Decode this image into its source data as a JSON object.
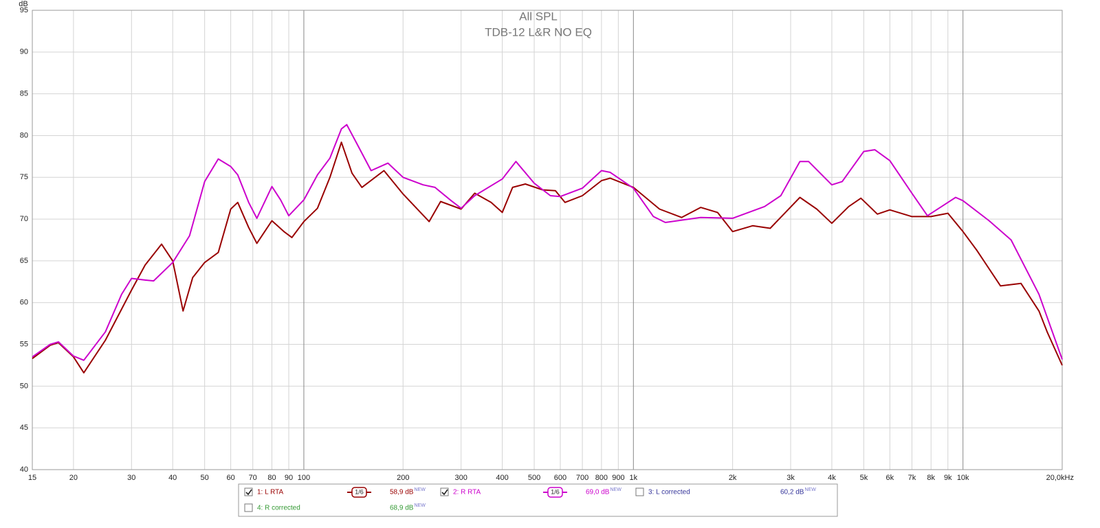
{
  "chart_data": {
    "type": "line",
    "title": "All SPL",
    "subtitle": "TDB-12 L&R NO EQ",
    "y_label": "dB",
    "log_x": true,
    "grid": true,
    "xlim": [
      15,
      20000
    ],
    "ylim": [
      40,
      95
    ],
    "yticks": [
      40,
      45,
      50,
      55,
      60,
      65,
      70,
      75,
      80,
      85,
      90,
      95
    ],
    "xticks": [
      15,
      20,
      30,
      40,
      50,
      60,
      70,
      80,
      90,
      100,
      200,
      300,
      400,
      500,
      600,
      700,
      800,
      900,
      {
        "value": 1000,
        "label": "1k"
      },
      {
        "value": 2000,
        "label": "2k"
      },
      {
        "value": 3000,
        "label": "3k"
      },
      {
        "value": 4000,
        "label": "4k"
      },
      {
        "value": 5000,
        "label": "5k"
      },
      {
        "value": 6000,
        "label": "6k"
      },
      {
        "value": 7000,
        "label": "7k"
      },
      {
        "value": 8000,
        "label": "8k"
      },
      {
        "value": 9000,
        "label": "9k"
      },
      {
        "value": 10000,
        "label": "10k"
      },
      {
        "value": 20000,
        "label": "20,0kHz"
      }
    ],
    "xgrid_major": [
      100,
      1000,
      10000
    ],
    "series": [
      {
        "name": "1: L RTA",
        "color": "#990000",
        "checked": true,
        "smoothing": "1/6",
        "level": "58,9 dB",
        "badge": "NEW",
        "x": [
          15,
          17,
          18,
          20,
          21.5,
          25,
          30,
          33,
          37,
          40,
          43,
          46,
          50,
          55,
          60,
          63,
          68,
          72,
          80,
          87,
          92,
          100,
          110,
          120,
          130,
          140,
          150,
          175,
          200,
          240,
          260,
          300,
          330,
          370,
          400,
          430,
          470,
          530,
          580,
          620,
          700,
          800,
          850,
          1000,
          1200,
          1400,
          1600,
          1800,
          2000,
          2300,
          2600,
          3200,
          3600,
          4000,
          4500,
          4900,
          5500,
          6000,
          7000,
          8000,
          9000,
          10000,
          11000,
          13000,
          15000,
          17000,
          18000,
          20000
        ],
        "values": [
          53.3,
          54.9,
          55.2,
          53.5,
          51.6,
          55.5,
          61.5,
          64.5,
          67,
          65,
          59,
          63,
          64.8,
          66,
          71.2,
          72,
          69,
          67.1,
          69.8,
          68.5,
          67.8,
          69.7,
          71.3,
          75,
          79.2,
          75.5,
          73.8,
          75.8,
          73,
          69.7,
          72.1,
          71.2,
          73.1,
          72,
          70.8,
          73.8,
          74.2,
          73.5,
          73.4,
          72,
          72.8,
          74.6,
          74.9,
          73.8,
          71.2,
          70.2,
          71.4,
          70.8,
          68.5,
          69.2,
          68.9,
          72.6,
          71.2,
          69.5,
          71.5,
          72.5,
          70.6,
          71.1,
          70.3,
          70.3,
          70.7,
          68.5,
          66.3,
          62,
          62.3,
          59,
          56.5,
          52.5
        ]
      },
      {
        "name": "2: R RTA",
        "color": "#cc00cc",
        "checked": true,
        "smoothing": "1/6",
        "level": "69,0 dB",
        "badge": "NEW",
        "x": [
          15,
          17,
          18,
          20,
          21.5,
          25,
          28,
          30,
          33,
          35,
          40,
          45,
          50,
          55,
          60,
          63,
          68,
          72,
          80,
          85,
          90,
          100,
          110,
          120,
          130,
          135,
          145,
          160,
          180,
          200,
          230,
          250,
          280,
          300,
          330,
          400,
          440,
          500,
          560,
          600,
          700,
          800,
          850,
          1000,
          1150,
          1250,
          1600,
          2000,
          2500,
          2800,
          3200,
          3400,
          4000,
          4300,
          5000,
          5400,
          6000,
          7000,
          7800,
          9000,
          9500,
          10000,
          12000,
          14000,
          17000,
          20000
        ],
        "values": [
          53.5,
          55,
          55.3,
          53.6,
          53.1,
          56.5,
          61,
          62.9,
          62.7,
          62.6,
          64.8,
          68,
          74.5,
          77.2,
          76.3,
          75.3,
          72,
          70.1,
          73.9,
          72.3,
          70.4,
          72.3,
          75.3,
          77.3,
          80.8,
          81.3,
          79,
          75.8,
          76.7,
          75,
          74.1,
          73.8,
          72.2,
          71.3,
          72.8,
          74.8,
          76.9,
          74.3,
          72.8,
          72.7,
          73.7,
          75.8,
          75.6,
          73.7,
          70.3,
          69.6,
          70.2,
          70.1,
          71.5,
          72.8,
          76.9,
          76.9,
          74.1,
          74.5,
          78.1,
          78.3,
          77,
          73.1,
          70.4,
          72,
          72.6,
          72.2,
          69.8,
          67.5,
          61,
          53.2
        ]
      },
      {
        "name": "3: L corrected",
        "color": "#333399",
        "checked": false,
        "level": "60,2 dB",
        "badge": "NEW"
      },
      {
        "name": "4: R corrected",
        "color": "#339933",
        "checked": false,
        "level": "68,9 dB",
        "badge": "NEW"
      }
    ]
  }
}
